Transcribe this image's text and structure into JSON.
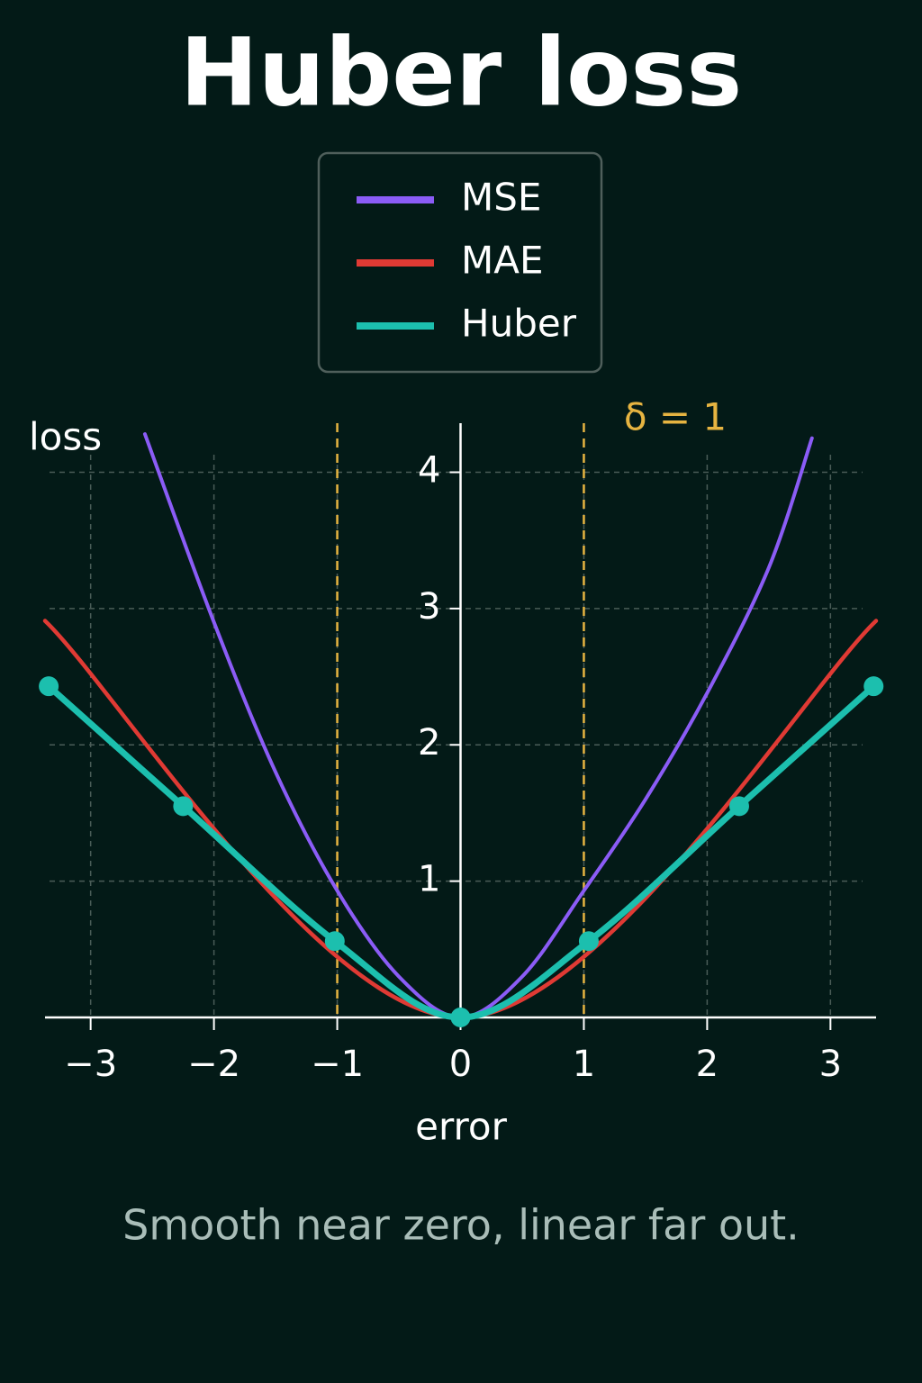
{
  "chart_data": {
    "type": "line",
    "title": "Huber loss",
    "subtitle": "Smooth near zero, linear far out.",
    "x_label": "error",
    "y_label": "loss",
    "xlim": [
      -3.37,
      3.37
    ],
    "ylim": [
      0,
      4.36
    ],
    "xticks": [
      {
        "value": -3,
        "label": "−3"
      },
      {
        "value": -2,
        "label": "−2"
      },
      {
        "value": -1,
        "label": "−1"
      },
      0,
      1,
      2,
      3
    ],
    "yticks": [
      1,
      2,
      3,
      4
    ],
    "grid": true,
    "annotation": "δ = 1",
    "vlines": [
      -1,
      1
    ],
    "vline_color": "#e6b441",
    "legend": "top",
    "series": [
      {
        "name": "MSE",
        "color": "#8b5cf6",
        "width": 4,
        "markers": false,
        "x": [
          -2.56,
          -2,
          -1.5,
          -1,
          -0.5,
          0,
          0.5,
          1,
          1.5,
          2,
          2.5,
          2.85
        ],
        "values": [
          4.28,
          2.9,
          1.8,
          0.93,
          0.3,
          0,
          0.3,
          0.93,
          1.6,
          2.38,
          3.3,
          4.25
        ]
      },
      {
        "name": "MAE",
        "color": "#e03a34",
        "width": 4.5,
        "markers": false,
        "x": [
          -3.37,
          0,
          3.37
        ],
        "values": [
          2.91,
          0,
          2.91
        ]
      },
      {
        "name": "Huber",
        "color": "#1cbfae",
        "width": 7,
        "markers": true,
        "x": [
          -3.34,
          -2.25,
          -1.02,
          0,
          1.04,
          2.26,
          3.35
        ],
        "values": [
          2.43,
          1.55,
          0.56,
          0,
          0.56,
          1.55,
          2.43
        ]
      }
    ]
  }
}
